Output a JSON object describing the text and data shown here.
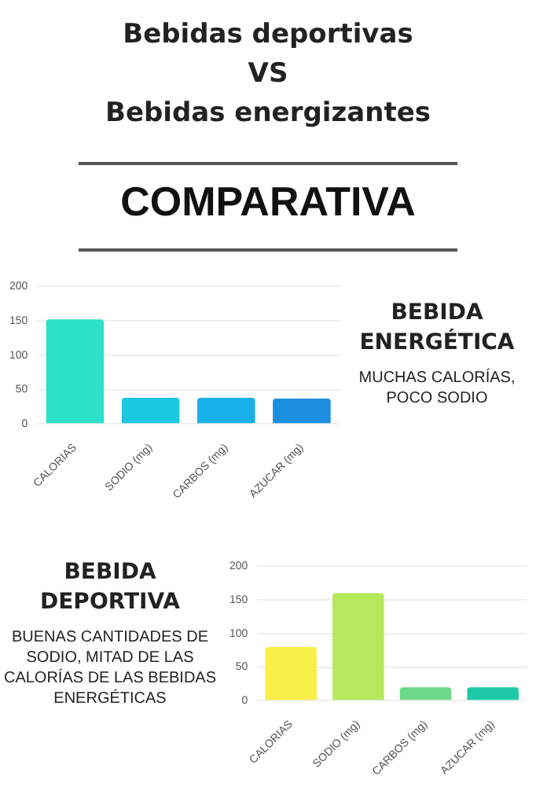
{
  "chart_data": [
    {
      "type": "bar",
      "title": "Bebidas deportivas\nVS\nBebidas energizantes",
      "subtitle": "COMPARATIVA",
      "annotations": [
        "BEBIDA ENERGÉTICA",
        "MUCHAS CALORÍAS, POCO SODIO"
      ],
      "categories": [
        "CALORIAS",
        "SODIO (mg)",
        "CARBOS (mg)",
        "AZUCAR (mg)"
      ],
      "values": [
        152,
        38,
        38,
        37
      ],
      "colors": [
        "#2de0c8",
        "#1cc8e0",
        "#18b0e8",
        "#1a8fe0"
      ],
      "ylim": [
        0,
        200
      ],
      "yticks": [
        0,
        50,
        100,
        150,
        200
      ],
      "grid": "y",
      "legend": false
    },
    {
      "type": "bar",
      "annotations": [
        "BEBIDA DEPORTIVA",
        "BUENAS CANTIDADES DE SODIO, MITAD DE LAS CALORÍAS DE LAS BEBIDAS ENERGÉTICAS"
      ],
      "categories": [
        "CALORIAS",
        "SODIO (mg)",
        "CARBOS (mg)",
        "AZUCAR (mg)"
      ],
      "values": [
        80,
        160,
        20,
        20
      ],
      "colors": [
        "#f7ee4a",
        "#b5e85a",
        "#6dd98a",
        "#1ec9a8"
      ],
      "ylim": [
        0,
        200
      ],
      "yticks": [
        0,
        50,
        100,
        150,
        200
      ],
      "grid": "y",
      "legend": false
    }
  ]
}
